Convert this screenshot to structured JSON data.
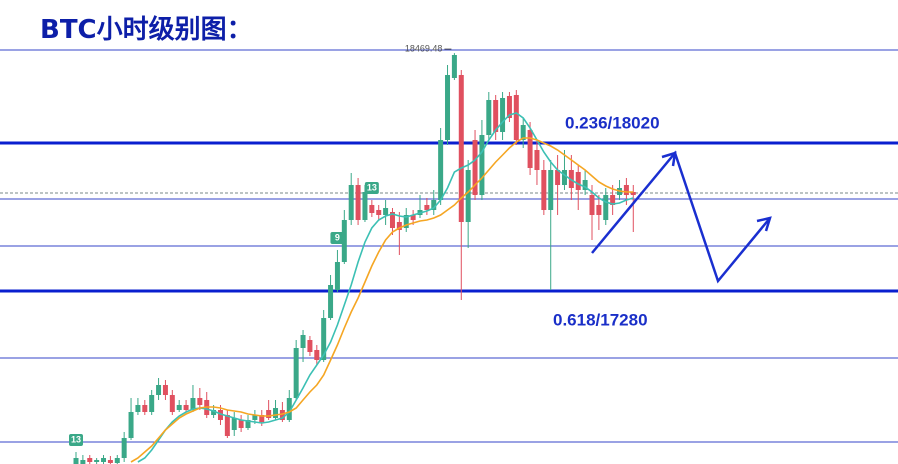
{
  "chart_data": {
    "type": "candlestick",
    "title": "BTC小时级别图：",
    "ylim": [
      16415,
      18735
    ],
    "up_color": "#3aa888",
    "down_color": "#e0505f",
    "level_color": "#0a1fcf",
    "line_color": "#3545c8",
    "key_levels": [
      {
        "value": 18020,
        "label": "0.236/18020"
      },
      {
        "value": 17280,
        "label": "0.618/17280"
      }
    ],
    "hlines": [
      18485,
      17740,
      17505,
      16945,
      16525
    ],
    "current_price": 17770,
    "high_candle": 55,
    "markers": [
      {
        "candle": 0,
        "text": "13"
      },
      {
        "candle": 38,
        "text": "9"
      },
      {
        "candle": 43,
        "text": "13"
      }
    ],
    "candles": [
      [
        16415,
        16475,
        16415,
        16445
      ],
      [
        16415,
        16460,
        16415,
        16435
      ],
      [
        16445,
        16460,
        16415,
        16425
      ],
      [
        16425,
        16445,
        16415,
        16435
      ],
      [
        16425,
        16460,
        16415,
        16445
      ],
      [
        16435,
        16455,
        16415,
        16420
      ],
      [
        16420,
        16460,
        16415,
        16445
      ],
      [
        16445,
        16575,
        16425,
        16545
      ],
      [
        16545,
        16745,
        16535,
        16675
      ],
      [
        16675,
        16745,
        16660,
        16710
      ],
      [
        16710,
        16735,
        16660,
        16675
      ],
      [
        16675,
        16785,
        16660,
        16760
      ],
      [
        16760,
        16845,
        16735,
        16810
      ],
      [
        16810,
        16835,
        16735,
        16760
      ],
      [
        16760,
        16785,
        16660,
        16675
      ],
      [
        16685,
        16735,
        16675,
        16710
      ],
      [
        16710,
        16735,
        16675,
        16685
      ],
      [
        16685,
        16810,
        16675,
        16745
      ],
      [
        16745,
        16795,
        16685,
        16710
      ],
      [
        16735,
        16775,
        16645,
        16660
      ],
      [
        16660,
        16710,
        16645,
        16685
      ],
      [
        16685,
        16710,
        16610,
        16635
      ],
      [
        16660,
        16685,
        16545,
        16555
      ],
      [
        16585,
        16675,
        16555,
        16645
      ],
      [
        16635,
        16660,
        16575,
        16595
      ],
      [
        16595,
        16660,
        16585,
        16635
      ],
      [
        16635,
        16685,
        16615,
        16660
      ],
      [
        16660,
        16685,
        16605,
        16625
      ],
      [
        16685,
        16735,
        16635,
        16645
      ],
      [
        16645,
        16735,
        16635,
        16695
      ],
      [
        16685,
        16725,
        16625,
        16635
      ],
      [
        16635,
        16785,
        16625,
        16745
      ],
      [
        16745,
        17035,
        16735,
        16995
      ],
      [
        16995,
        17085,
        16925,
        17060
      ],
      [
        17035,
        17055,
        16955,
        16975
      ],
      [
        16985,
        17010,
        16910,
        16935
      ],
      [
        16935,
        17185,
        16925,
        17145
      ],
      [
        17145,
        17360,
        17135,
        17310
      ],
      [
        17285,
        17485,
        17275,
        17425
      ],
      [
        17425,
        17685,
        17415,
        17635
      ],
      [
        17635,
        17870,
        17610,
        17810
      ],
      [
        17810,
        17845,
        17610,
        17635
      ],
      [
        17635,
        17810,
        17625,
        17775
      ],
      [
        17710,
        17735,
        17650,
        17670
      ],
      [
        17685,
        17710,
        17635,
        17660
      ],
      [
        17660,
        17735,
        17610,
        17695
      ],
      [
        17675,
        17695,
        17560,
        17595
      ],
      [
        17625,
        17675,
        17460,
        17585
      ],
      [
        17595,
        17695,
        17575,
        17660
      ],
      [
        17660,
        17685,
        17610,
        17635
      ],
      [
        17660,
        17760,
        17645,
        17685
      ],
      [
        17710,
        17745,
        17660,
        17685
      ],
      [
        17685,
        17785,
        17660,
        17735
      ],
      [
        17735,
        18095,
        17710,
        18035
      ],
      [
        18035,
        18410,
        18010,
        18360
      ],
      [
        18345,
        18469.48,
        18335,
        18460
      ],
      [
        18360,
        18385,
        17235,
        17625
      ],
      [
        17625,
        17935,
        17495,
        17885
      ],
      [
        18035,
        18085,
        17735,
        17760
      ],
      [
        17760,
        18135,
        17735,
        18060
      ],
      [
        18060,
        18275,
        18035,
        18235
      ],
      [
        18235,
        18260,
        18035,
        18075
      ],
      [
        18075,
        18275,
        18035,
        18245
      ],
      [
        18255,
        18275,
        18125,
        18145
      ],
      [
        18260,
        18285,
        18010,
        18035
      ],
      [
        18035,
        18145,
        17995,
        18110
      ],
      [
        18085,
        18125,
        17860,
        17895
      ],
      [
        17985,
        18035,
        17810,
        17885
      ],
      [
        17885,
        17935,
        17660,
        17685
      ],
      [
        17685,
        17935,
        17285,
        17885
      ],
      [
        17885,
        17960,
        17660,
        17810
      ],
      [
        17810,
        17985,
        17785,
        17885
      ],
      [
        17885,
        17960,
        17735,
        17795
      ],
      [
        17875,
        17910,
        17685,
        17785
      ],
      [
        17785,
        17885,
        17760,
        17835
      ],
      [
        17760,
        17810,
        17535,
        17660
      ],
      [
        17710,
        17760,
        17585,
        17660
      ],
      [
        17635,
        17795,
        17610,
        17760
      ],
      [
        17760,
        17810,
        17660,
        17710
      ],
      [
        17760,
        17835,
        17735,
        17795
      ],
      [
        17810,
        17845,
        17710,
        17760
      ],
      [
        17775,
        17810,
        17575,
        17760
      ]
    ],
    "series": [
      {
        "color": "#3cc0b4",
        "values": [
          null,
          null,
          null,
          null,
          null,
          null,
          null,
          null,
          null,
          16425,
          16445,
          16485,
          16535,
          16585,
          16625,
          16655,
          16675,
          16690,
          16695,
          16690,
          16680,
          16665,
          16655,
          16645,
          16635,
          16630,
          16625,
          16620,
          16625,
          16635,
          16645,
          16675,
          16735,
          16795,
          16860,
          16910,
          16960,
          17025,
          17110,
          17210,
          17310,
          17425,
          17525,
          17595,
          17635,
          17655,
          17665,
          17655,
          17650,
          17660,
          17670,
          17680,
          17695,
          17735,
          17795,
          17875,
          17895,
          17910,
          17935,
          17975,
          18035,
          18085,
          18125,
          18160,
          18170,
          18145,
          18095,
          18035,
          17975,
          17925,
          17885,
          17860,
          17835,
          17815,
          17800,
          17775,
          17745,
          17725,
          17715,
          17720,
          17735,
          17745
        ]
      },
      {
        "color": "#f5a623",
        "values": [
          null,
          null,
          null,
          null,
          null,
          null,
          null,
          null,
          16425,
          16445,
          16475,
          16505,
          16545,
          16585,
          16615,
          16645,
          16665,
          16680,
          16695,
          16700,
          16700,
          16695,
          16685,
          16680,
          16675,
          16665,
          16660,
          16655,
          16655,
          16660,
          16665,
          16675,
          16695,
          16735,
          16775,
          16810,
          16860,
          16935,
          17010,
          17095,
          17175,
          17245,
          17325,
          17405,
          17475,
          17535,
          17575,
          17595,
          17610,
          17620,
          17630,
          17635,
          17645,
          17660,
          17685,
          17710,
          17745,
          17775,
          17810,
          17845,
          17885,
          17925,
          17960,
          17995,
          18025,
          18045,
          18045,
          18035,
          18020,
          18005,
          17985,
          17960,
          17935,
          17910,
          17885,
          17855,
          17825,
          17805,
          17790,
          17780,
          17775,
          17775
        ]
      }
    ]
  }
}
